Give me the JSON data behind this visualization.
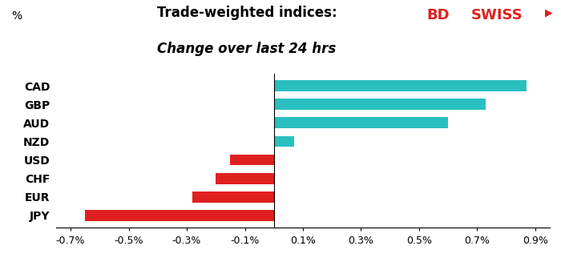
{
  "categories": [
    "CAD",
    "GBP",
    "AUD",
    "NZD",
    "USD",
    "CHF",
    "EUR",
    "JPY"
  ],
  "values": [
    0.87,
    0.73,
    0.6,
    0.07,
    -0.15,
    -0.2,
    -0.28,
    -0.65
  ],
  "positive_color": "#2abfbf",
  "negative_color": "#e02020",
  "title_line1": "Trade-weighted indices:",
  "title_line2": "Change over last 24 hrs",
  "ylabel_text": "%",
  "xlim": [
    -0.75,
    0.95
  ],
  "xticks": [
    -0.7,
    -0.5,
    -0.3,
    -0.1,
    0.1,
    0.3,
    0.5,
    0.7,
    0.9
  ],
  "xtick_labels": [
    "-0.7%",
    "-0.5%",
    "-0.3%",
    "-0.1%",
    "0.1%",
    "0.3%",
    "0.5%",
    "0.7%",
    "0.9%"
  ],
  "background_color": "#ffffff",
  "title_fontsize": 12,
  "tick_fontsize": 9,
  "label_fontsize": 10,
  "logo_bd": "BD",
  "logo_swiss": "SWISS",
  "logo_color": "#e02020"
}
